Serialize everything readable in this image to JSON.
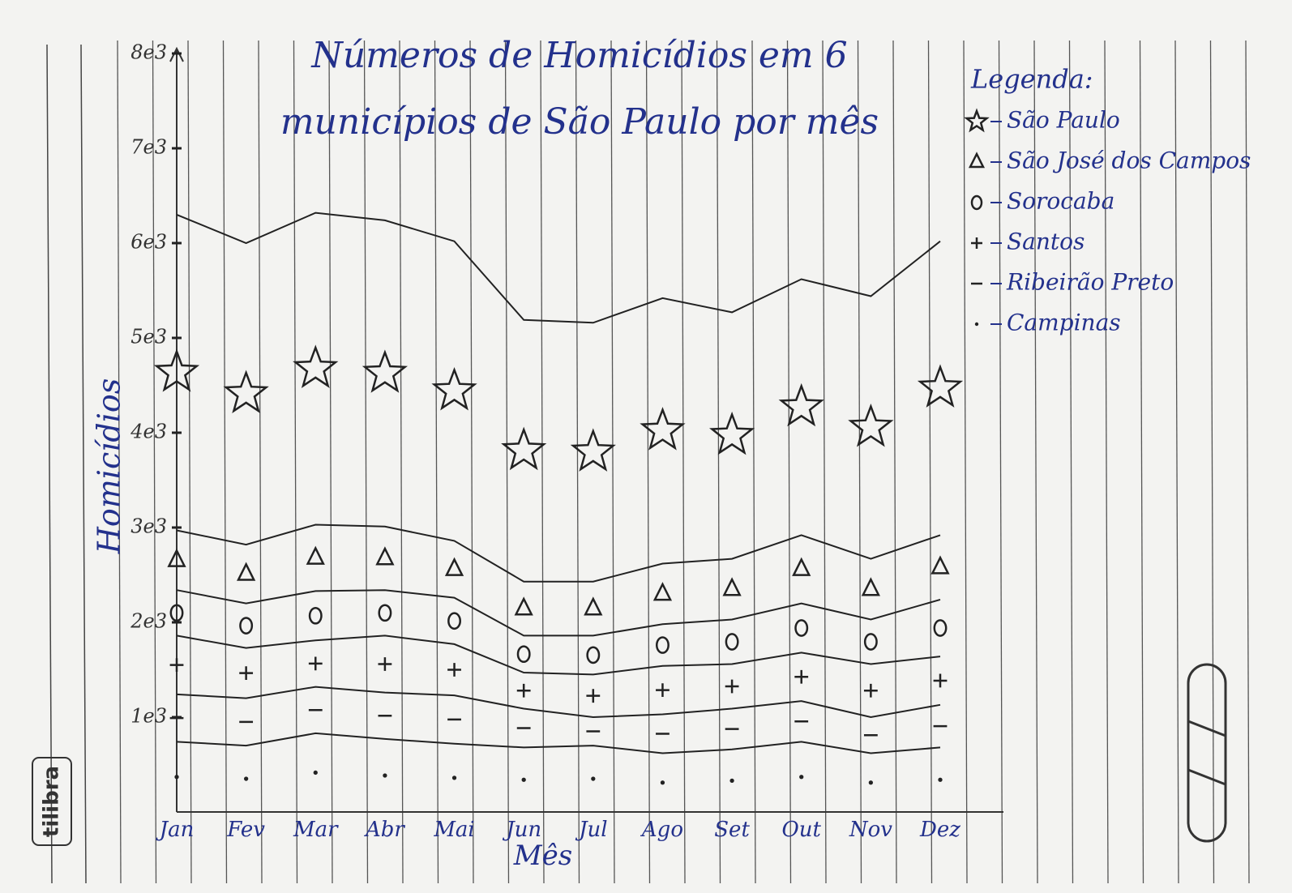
{
  "brand": "tilibra",
  "chart_data": {
    "type": "stacked_area",
    "title": "Números de Homicídios em 6 municípios de São Paulo por mês",
    "y_label": "Homicídios",
    "x_label": "Mês",
    "legend_title": "Legenda:",
    "legend": "right",
    "categories": [
      "Jan",
      "Fev",
      "Mar",
      "Abr",
      "Mai",
      "Jun",
      "Jul",
      "Ago",
      "Set",
      "Out",
      "Nov",
      "Dez"
    ],
    "ylim": [
      0,
      8000
    ],
    "yticks": [
      {
        "value": 1000,
        "label": "1e3"
      },
      {
        "value": 2000,
        "label": "2e3"
      },
      {
        "value": 3000,
        "label": "3e3"
      },
      {
        "value": 4000,
        "label": "4e3"
      },
      {
        "value": 5000,
        "label": "5e3"
      },
      {
        "value": 6000,
        "label": "6e3"
      },
      {
        "value": 7000,
        "label": "7e3"
      },
      {
        "value": 8000,
        "label": "8e3"
      }
    ],
    "series": [
      {
        "name": "São Paulo",
        "marker": "star",
        "color": "#222222",
        "values": [
          3330,
          3180,
          3290,
          3230,
          3160,
          2760,
          2730,
          2800,
          2600,
          2700,
          2770,
          3100
        ]
      },
      {
        "name": "São José dos Campos",
        "marker": "triangle",
        "color": "#222222",
        "values": [
          630,
          620,
          700,
          670,
          600,
          570,
          570,
          640,
          640,
          720,
          640,
          680
        ]
      },
      {
        "name": "Sorocaba",
        "marker": "circle",
        "color": "#222222",
        "values": [
          480,
          470,
          520,
          480,
          490,
          390,
          410,
          440,
          470,
          520,
          470,
          600
        ]
      },
      {
        "name": "Santos",
        "marker": "plus",
        "color": "#222222",
        "values": [
          620,
          530,
          490,
          600,
          540,
          380,
          450,
          510,
          470,
          510,
          560,
          510
        ]
      },
      {
        "name": "Ribeirão Preto",
        "marker": "dash",
        "color": "#222222",
        "values": [
          500,
          500,
          490,
          490,
          510,
          410,
          300,
          410,
          430,
          430,
          380,
          450
        ]
      },
      {
        "name": "Campinas",
        "marker": "dot",
        "color": "#222222",
        "values": [
          740,
          700,
          830,
          770,
          720,
          680,
          700,
          620,
          660,
          740,
          620,
          680
        ]
      }
    ]
  }
}
